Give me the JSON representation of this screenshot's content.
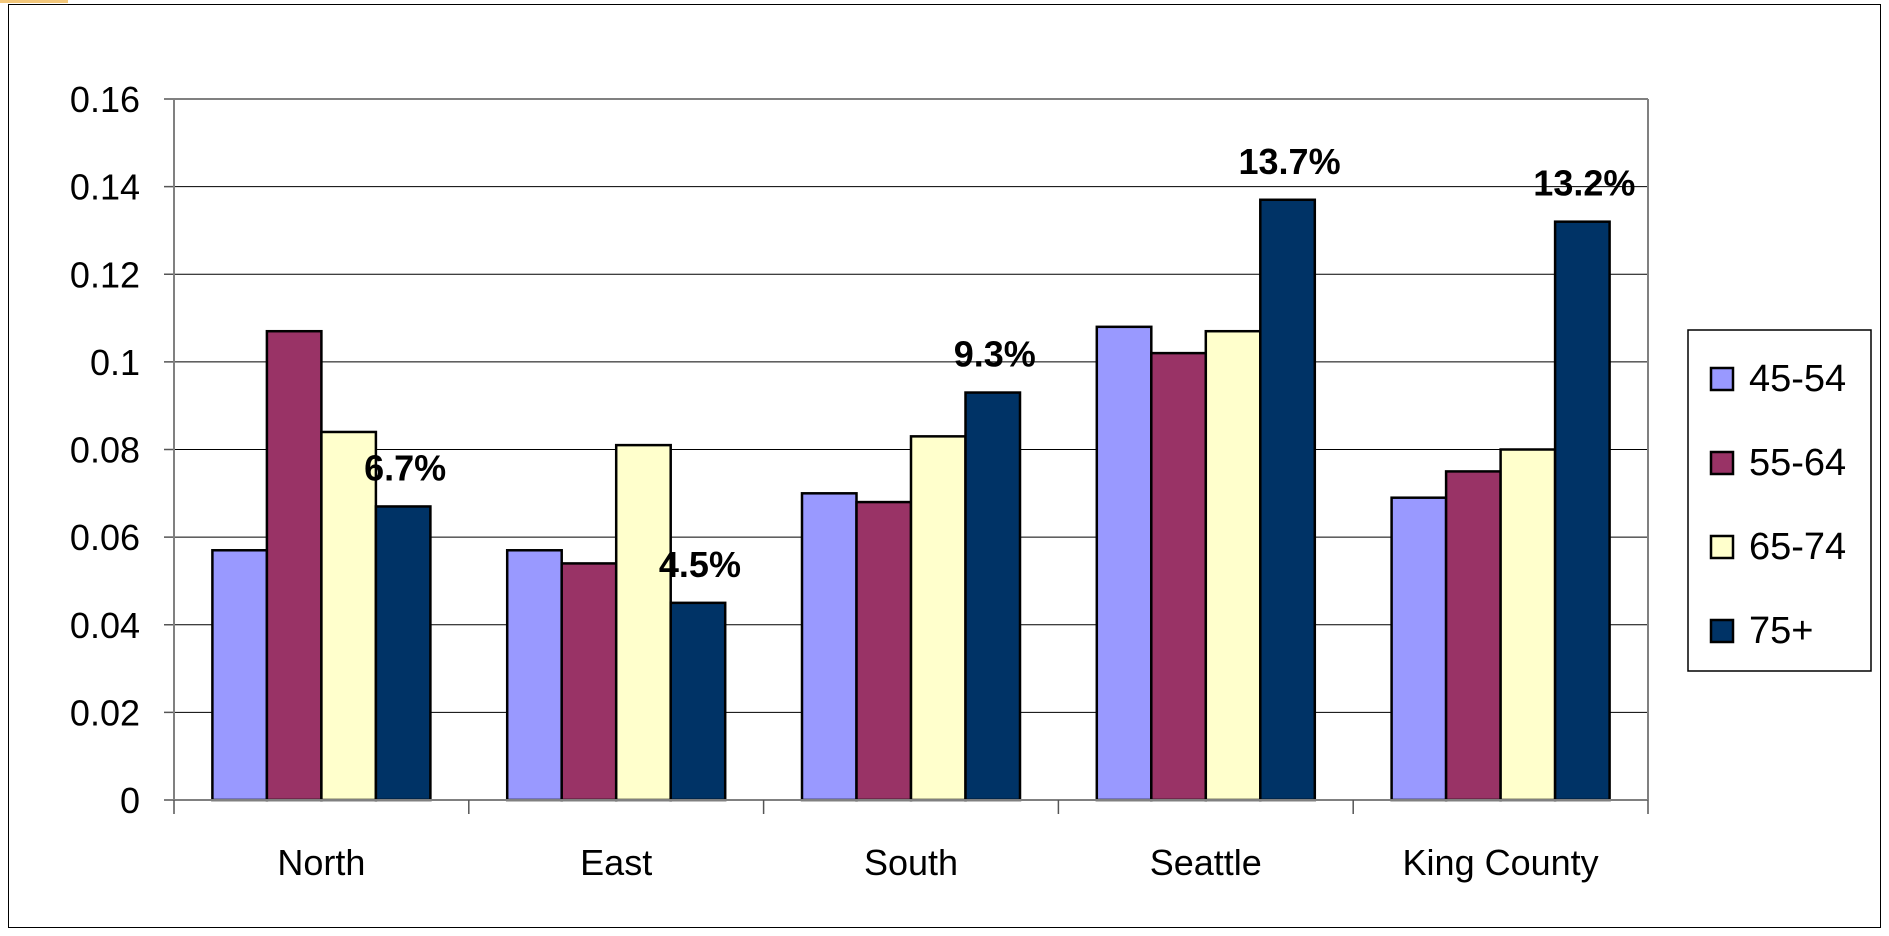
{
  "chart_data": {
    "type": "bar",
    "categories": [
      "North",
      "East",
      "South",
      "Seattle",
      "King County"
    ],
    "series": [
      {
        "name": "45-54",
        "color": "#9999ff",
        "values": [
          0.057,
          0.057,
          0.07,
          0.108,
          0.069
        ]
      },
      {
        "name": "55-64",
        "color": "#993366",
        "values": [
          0.107,
          0.054,
          0.068,
          0.102,
          0.075
        ]
      },
      {
        "name": "65-74",
        "color": "#ffffcc",
        "values": [
          0.084,
          0.081,
          0.083,
          0.107,
          0.08
        ]
      },
      {
        "name": "75+",
        "color": "#003366",
        "values": [
          0.067,
          0.045,
          0.093,
          0.137,
          0.132
        ]
      }
    ],
    "data_labels": [
      "6.7%",
      "4.5%",
      "9.3%",
      "13.7%",
      "13.2%"
    ],
    "data_label_series": "75+",
    "yticks": [
      "0",
      "0.02",
      "0.04",
      "0.06",
      "0.08",
      "0.1",
      "0.12",
      "0.14",
      "0.16"
    ],
    "ylim": [
      0,
      0.16
    ],
    "grid": true,
    "legend_position": "right"
  }
}
